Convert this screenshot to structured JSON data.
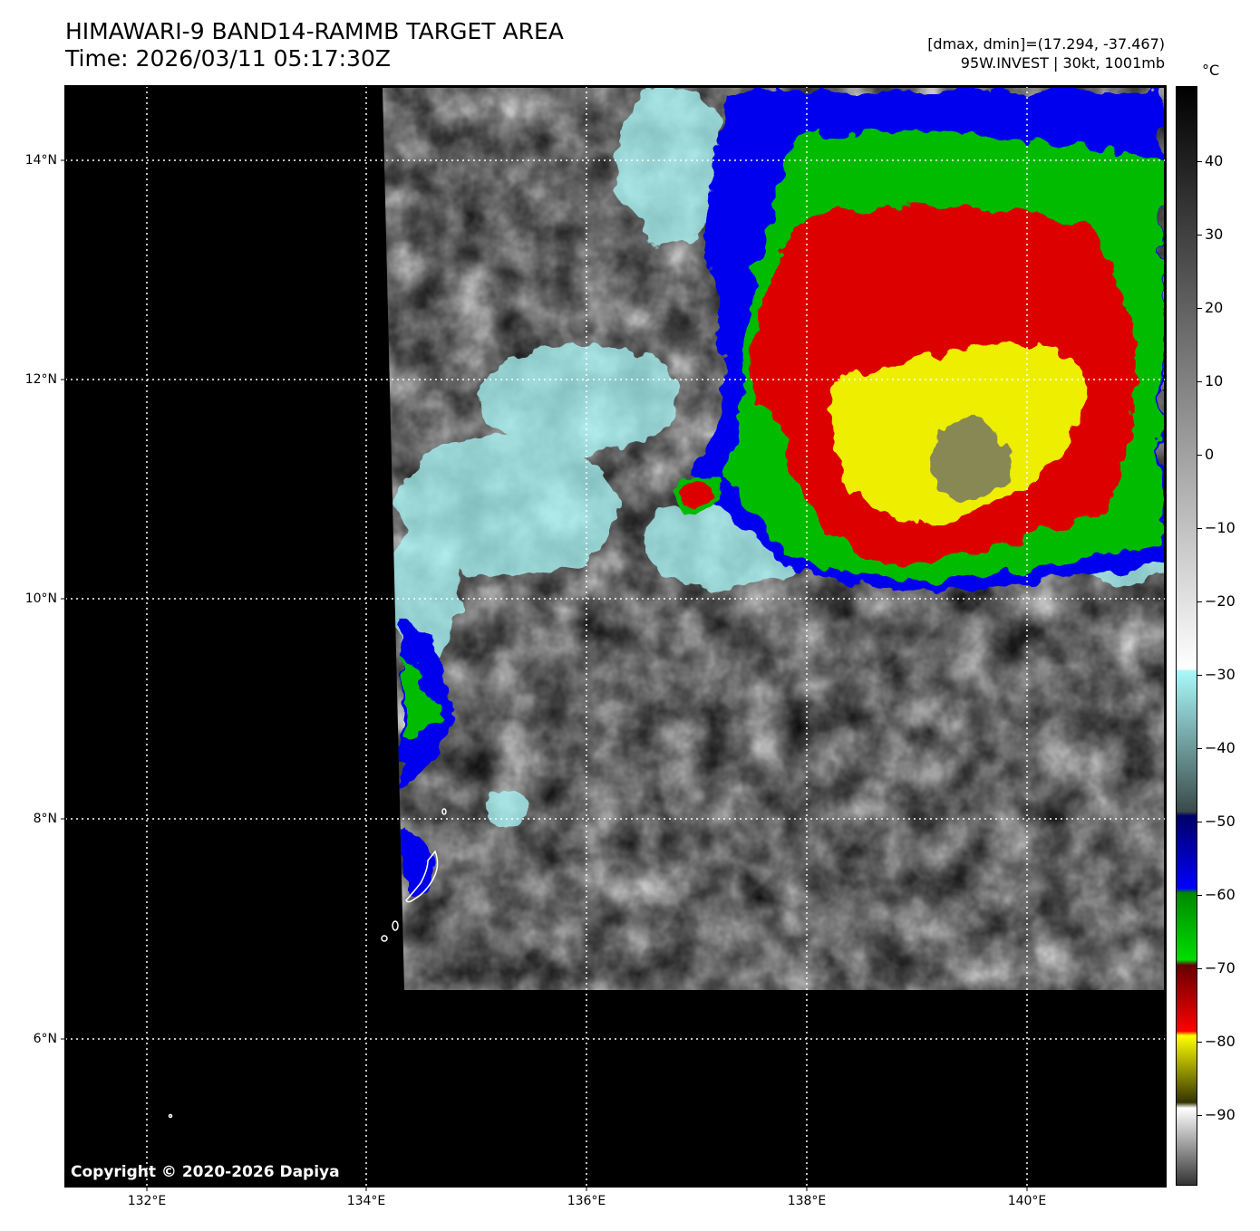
{
  "header": {
    "title_line1": "HIMAWARI-9 BAND14-RAMMB TARGET AREA",
    "title_line2": "Time: 2026/03/11 05:17:30Z",
    "range_text": "[dmax, dmin]=(17.294, -37.467)",
    "storm_text": "95W.INVEST | 30kt, 1001mb"
  },
  "map": {
    "lat_labels": [
      "14°N",
      "12°N",
      "10°N",
      "8°N",
      "6°N"
    ],
    "lon_labels": [
      "132°E",
      "134°E",
      "136°E",
      "138°E",
      "140°E"
    ],
    "copyright": "Copyright © 2020-2026 Dapiya"
  },
  "colorbar": {
    "unit": "°C",
    "ticks": [
      "40",
      "30",
      "20",
      "10",
      "0",
      "−10",
      "−20",
      "−30",
      "−40",
      "−50",
      "−60",
      "−70",
      "−80",
      "−90"
    ],
    "colors": {
      "warm_top": "#000000",
      "gray": "#808080",
      "white": "#ffffff",
      "cyan": "#aaf8f8",
      "blue": "#0000cc",
      "green": "#00aa00",
      "red": "#dd0000",
      "yellow": "#f0f000"
    }
  }
}
